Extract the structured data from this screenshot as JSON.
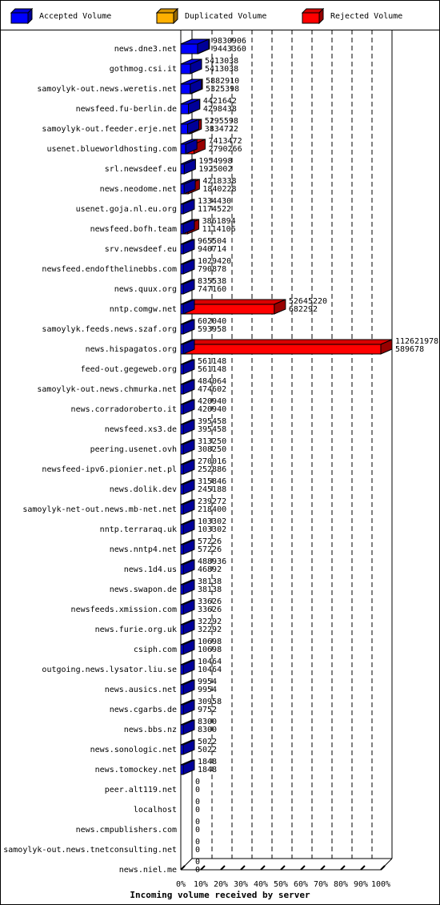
{
  "legend": {
    "accepted": {
      "label": "Accepted Volume",
      "color": "#0000ff"
    },
    "duplicated": {
      "label": "Duplicated Volume",
      "color": "#ffb000"
    },
    "rejected": {
      "label": "Rejected Volume",
      "color": "#ff0000"
    }
  },
  "chart_data": {
    "type": "bar",
    "orientation": "horizontal",
    "stacked": true,
    "xlabel": "Incoming volume received by server",
    "xticks": [
      "0%",
      "10%",
      "20%",
      "30%",
      "40%",
      "50%",
      "60%",
      "70%",
      "80%",
      "90%",
      "100%"
    ],
    "xlim": [
      0,
      100
    ],
    "grid": true,
    "legend_position": "top",
    "series": [
      {
        "name": "Accepted Volume",
        "color": "#0000ff"
      },
      {
        "name": "Duplicated Volume",
        "color": "#ffb000"
      },
      {
        "name": "Rejected Volume",
        "color": "#ff0000"
      }
    ],
    "rows": [
      {
        "server": "news.dne3.net",
        "total": 9830906,
        "accepted": 9443360
      },
      {
        "server": "gothmog.csi.it",
        "total": 5413038,
        "accepted": 5413038
      },
      {
        "server": "samoylyk-out.news.weretis.net",
        "total": 5882910,
        "accepted": 5325398
      },
      {
        "server": "newsfeed.fu-berlin.de",
        "total": 4421642,
        "accepted": 4298438
      },
      {
        "server": "samoylyk-out.feeder.erje.net",
        "total": 5295598,
        "accepted": 3834722
      },
      {
        "server": "usenet.blueworldhosting.com",
        "total": 7413472,
        "accepted": 2790266
      },
      {
        "server": "srl.newsdeef.eu",
        "total": 1954998,
        "accepted": 1925002
      },
      {
        "server": "news.neodome.net",
        "total": 4218338,
        "accepted": 1840228
      },
      {
        "server": "usenet.goja.nl.eu.org",
        "total": 1334430,
        "accepted": 1174522
      },
      {
        "server": "newsfeed.bofh.team",
        "total": 3861894,
        "accepted": 1114106
      },
      {
        "server": "srv.newsdeef.eu",
        "total": 965504,
        "accepted": 940714
      },
      {
        "server": "newsfeed.endofthelinebbs.com",
        "total": 1029420,
        "accepted": 790878
      },
      {
        "server": "news.quux.org",
        "total": 835538,
        "accepted": 747160
      },
      {
        "server": "nntp.comgw.net",
        "total": 52645220,
        "accepted": 682292
      },
      {
        "server": "samoylyk.feeds.news.szaf.org",
        "total": 602040,
        "accepted": 593958
      },
      {
        "server": "news.hispagatos.org",
        "total": 112621978,
        "accepted": 589678
      },
      {
        "server": "feed-out.gegeweb.org",
        "total": 561148,
        "accepted": 561148
      },
      {
        "server": "samoylyk-out.news.chmurka.net",
        "total": 484064,
        "accepted": 474602
      },
      {
        "server": "news.corradoroberto.it",
        "total": 420940,
        "accepted": 420940
      },
      {
        "server": "newsfeed.xs3.de",
        "total": 395458,
        "accepted": 395458
      },
      {
        "server": "peering.usenet.ovh",
        "total": 313250,
        "accepted": 308250
      },
      {
        "server": "newsfeed-ipv6.pionier.net.pl",
        "total": 270016,
        "accepted": 252886
      },
      {
        "server": "news.dolik.dev",
        "total": 315846,
        "accepted": 245188
      },
      {
        "server": "samoylyk-net-out.news.mb-net.net",
        "total": 239272,
        "accepted": 218400
      },
      {
        "server": "nntp.terraraq.uk",
        "total": 103302,
        "accepted": 103302
      },
      {
        "server": "news.nntp4.net",
        "total": 57226,
        "accepted": 57226
      },
      {
        "server": "news.1d4.us",
        "total": 488936,
        "accepted": 46892
      },
      {
        "server": "news.swapon.de",
        "total": 38138,
        "accepted": 38138
      },
      {
        "server": "newsfeeds.xmission.com",
        "total": 33626,
        "accepted": 33626
      },
      {
        "server": "news.furie.org.uk",
        "total": 32292,
        "accepted": 32292
      },
      {
        "server": "csiph.com",
        "total": 10698,
        "accepted": 10698
      },
      {
        "server": "outgoing.news.lysator.liu.se",
        "total": 10464,
        "accepted": 10464
      },
      {
        "server": "news.ausics.net",
        "total": 9954,
        "accepted": 9954
      },
      {
        "server": "news.cgarbs.de",
        "total": 30958,
        "accepted": 9752
      },
      {
        "server": "news.bbs.nz",
        "total": 8300,
        "accepted": 8300
      },
      {
        "server": "news.sonologic.net",
        "total": 5022,
        "accepted": 5022
      },
      {
        "server": "news.tomockey.net",
        "total": 1848,
        "accepted": 1848
      },
      {
        "server": "peer.alt119.net",
        "total": 0,
        "accepted": 0
      },
      {
        "server": "localhost",
        "total": 0,
        "accepted": 0
      },
      {
        "server": "news.cmpublishers.com",
        "total": 0,
        "accepted": 0
      },
      {
        "server": "samoylyk-out.news.tnetconsulting.net",
        "total": 0,
        "accepted": 0
      },
      {
        "server": "news.niel.me",
        "total": 0,
        "accepted": 0
      }
    ]
  }
}
